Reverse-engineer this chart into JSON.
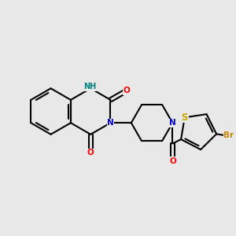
{
  "bg_color": "#e8e8e8",
  "bond_color": "#000000",
  "bond_width": 1.5,
  "atom_colors": {
    "N": "#0000cc",
    "NH": "#008080",
    "O": "#ff0000",
    "S": "#ccaa00",
    "Br": "#cc8800"
  },
  "font_size": 7.5,
  "fig_size": [
    3.0,
    3.0
  ],
  "dpi": 100
}
